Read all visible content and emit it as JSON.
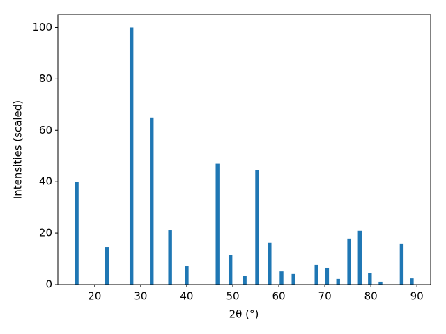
{
  "chart_data": {
    "type": "bar",
    "x_label": "2θ (°)",
    "y_label": "Intensities (scaled)",
    "x": [
      16.1,
      22.7,
      28.0,
      32.4,
      36.4,
      40.0,
      46.7,
      49.5,
      52.6,
      55.3,
      58.0,
      60.6,
      63.2,
      68.2,
      70.5,
      72.9,
      75.3,
      77.6,
      79.8,
      82.1,
      86.7,
      88.9
    ],
    "values": [
      39.8,
      14.6,
      100,
      65,
      21.1,
      7.3,
      47.2,
      11.4,
      3.5,
      44.4,
      16.3,
      5.1,
      4.1,
      7.6,
      6.5,
      2.2,
      17.9,
      20.9,
      4.6,
      1.1,
      16.0,
      2.4
    ],
    "color": "#1f77b4",
    "xlim": [
      12,
      93
    ],
    "xticks": [
      20,
      30,
      40,
      50,
      60,
      70,
      80,
      90
    ],
    "ylim": [
      0,
      105
    ],
    "yticks": [
      0,
      20,
      40,
      60,
      80,
      100
    ],
    "grid": false
  }
}
